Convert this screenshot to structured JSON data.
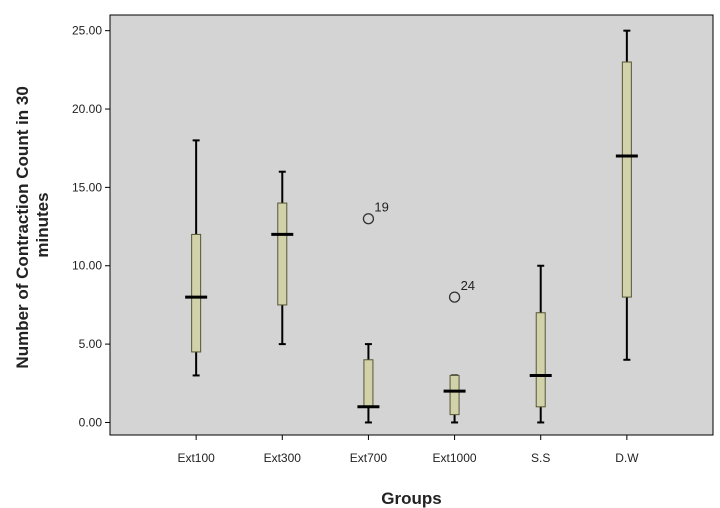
{
  "chart_data": {
    "type": "boxplot",
    "xlabel": "Groups",
    "ylabel_lines": [
      "Number of Contraction Count in 30",
      "minutes"
    ],
    "ylim": [
      -0.8,
      26.0
    ],
    "yticks": [
      0,
      5,
      10,
      15,
      20,
      25
    ],
    "ytick_labels": [
      "0.00",
      "5.00",
      "10.00",
      "15.00",
      "20.00",
      "25.00"
    ],
    "categories": [
      "Ext100",
      "Ext300",
      "Ext700",
      "Ext1000",
      "S.S",
      "D.W"
    ],
    "boxes": [
      {
        "category": "Ext100",
        "min": 3,
        "q1": 4.5,
        "median": 8,
        "q3": 12,
        "max": 18,
        "outliers": []
      },
      {
        "category": "Ext300",
        "min": 5,
        "q1": 7.5,
        "median": 12,
        "q3": 14,
        "max": 16,
        "outliers": []
      },
      {
        "category": "Ext700",
        "min": 0,
        "q1": 1,
        "median": 1,
        "q3": 4,
        "max": 5,
        "outliers": [
          {
            "value": 13,
            "label": "19"
          }
        ]
      },
      {
        "category": "Ext1000",
        "min": 0,
        "q1": 0.5,
        "median": 2,
        "q3": 3,
        "max": 3,
        "outliers": [
          {
            "value": 8,
            "label": "24"
          }
        ]
      },
      {
        "category": "S.S",
        "min": 0,
        "q1": 1,
        "median": 3,
        "q3": 7,
        "max": 10,
        "outliers": []
      },
      {
        "category": "D.W",
        "min": 4,
        "q1": 8,
        "median": 17,
        "q3": 23,
        "max": 25,
        "outliers": []
      }
    ],
    "grid": false,
    "colors": {
      "plot_bg": "#d4d4d4",
      "box_fill": "#d2d2aa",
      "box_stroke": "#555533",
      "line": "#000000",
      "frame": "#000000"
    }
  }
}
